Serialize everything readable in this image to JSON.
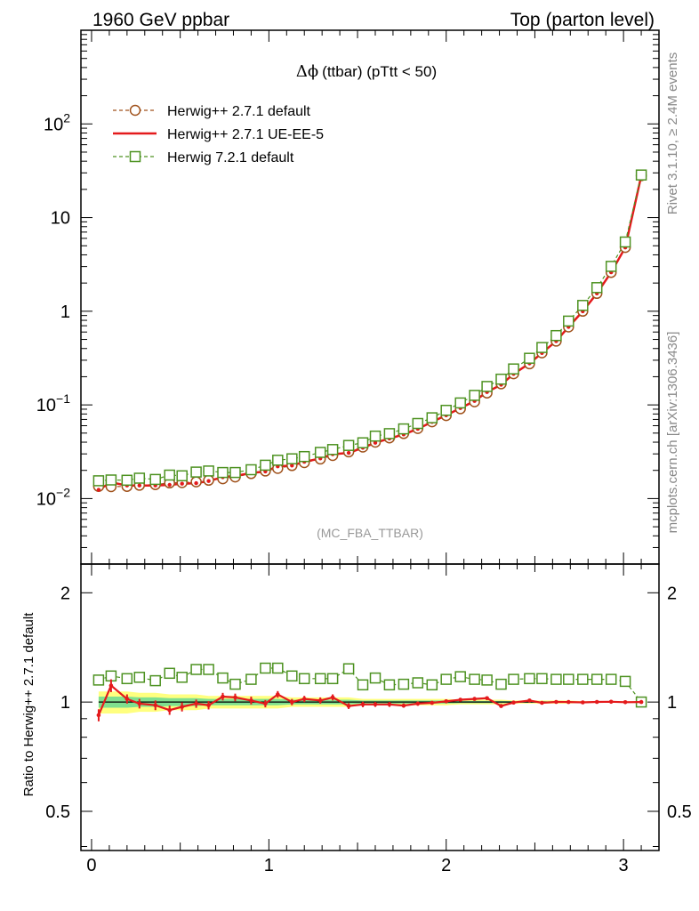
{
  "header": {
    "left": "1960 GeV ppbar",
    "right": "Top (parton level)"
  },
  "side_labels": {
    "rivet": "Rivet 3.1.10, ≥ 2.4M events",
    "mcplots": "mcplots.cern.ch [arXiv:1306.3436]"
  },
  "chart_data": [
    {
      "type": "line",
      "title_symbol": "Δϕ",
      "title": "(ttbar) (pTtt < 50)",
      "watermark": "(MC_FBA_TTBAR)",
      "yscale": "log",
      "ylim": [
        0.002,
        1000
      ],
      "xlim": [
        -0.06,
        3.2
      ],
      "y_ticks": [
        {
          "value": 0.01,
          "base": "10",
          "exp": "−2"
        },
        {
          "value": 0.1,
          "base": "10",
          "exp": "−1"
        },
        {
          "value": 1,
          "base": "1",
          "exp": ""
        },
        {
          "value": 10,
          "base": "10",
          "exp": ""
        },
        {
          "value": 100,
          "base": "10",
          "exp": "2"
        }
      ],
      "legend_position": "top-left",
      "x": [
        0.04,
        0.11,
        0.2,
        0.27,
        0.36,
        0.44,
        0.51,
        0.59,
        0.66,
        0.74,
        0.81,
        0.9,
        0.98,
        1.05,
        1.13,
        1.2,
        1.29,
        1.36,
        1.45,
        1.53,
        1.6,
        1.68,
        1.76,
        1.84,
        1.92,
        2.0,
        2.08,
        2.16,
        2.23,
        2.31,
        2.38,
        2.47,
        2.54,
        2.62,
        2.69,
        2.77,
        2.85,
        2.93,
        3.01,
        3.1
      ],
      "series": [
        {
          "name": "Herwig++ 2.7.1 default",
          "color": "#a0521c",
          "marker": "circle",
          "linestyle": "dashed",
          "values": [
            0.0135,
            0.0134,
            0.0135,
            0.0139,
            0.0141,
            0.0147,
            0.0148,
            0.0151,
            0.0157,
            0.0163,
            0.017,
            0.0185,
            0.0197,
            0.021,
            0.0225,
            0.0242,
            0.0265,
            0.0288,
            0.0315,
            0.0355,
            0.04,
            0.0445,
            0.0495,
            0.056,
            0.066,
            0.077,
            0.091,
            0.108,
            0.134,
            0.168,
            0.215,
            0.275,
            0.36,
            0.48,
            0.68,
            1.0,
            1.55,
            2.6,
            4.8,
            28.0
          ]
        },
        {
          "name": "Herwig++ 2.7.1 UE-EE-5",
          "color": "#e41a1c",
          "marker": "none",
          "linestyle": "solid",
          "values": [
            0.0124,
            0.0149,
            0.0138,
            0.0138,
            0.0138,
            0.014,
            0.0144,
            0.0146,
            0.0154,
            0.0169,
            0.0175,
            0.0187,
            0.0195,
            0.0221,
            0.0225,
            0.0247,
            0.0268,
            0.0297,
            0.0307,
            0.0349,
            0.0394,
            0.0438,
            0.0484,
            0.0554,
            0.0657,
            0.0774,
            0.0924,
            0.1101,
            0.1372,
            0.164,
            0.2143,
            0.2773,
            0.3583,
            0.4805,
            0.6797,
            0.998,
            1.5515,
            2.6039,
            4.7933,
            28.0
          ]
        },
        {
          "name": "Herwig 7.2.1 default",
          "color": "#4d9221",
          "marker": "open-square",
          "linestyle": "dashed",
          "values": [
            0.0155,
            0.0158,
            0.0157,
            0.0165,
            0.016,
            0.0178,
            0.0175,
            0.0192,
            0.0197,
            0.019,
            0.019,
            0.0203,
            0.0227,
            0.0257,
            0.0266,
            0.0281,
            0.0311,
            0.0334,
            0.0369,
            0.0394,
            0.0464,
            0.0494,
            0.0555,
            0.0633,
            0.0728,
            0.0875,
            0.1049,
            0.1265,
            0.1575,
            0.1882,
            0.2422,
            0.3149,
            0.4104,
            0.5497,
            0.7844,
            1.154,
            1.789,
            3.016,
            5.482,
            28.5
          ]
        }
      ]
    },
    {
      "type": "line",
      "ylabel": "Ratio to Herwig++ 2.7.1 default",
      "yscale": "log",
      "ylim": [
        0.39,
        2.4
      ],
      "xlim": [
        -0.06,
        3.2
      ],
      "x_ticks": [
        0,
        1,
        2,
        3
      ],
      "y_ticks": [
        0.5,
        1,
        2
      ],
      "x": [
        0.04,
        0.11,
        0.2,
        0.27,
        0.36,
        0.44,
        0.51,
        0.59,
        0.66,
        0.74,
        0.81,
        0.9,
        0.98,
        1.05,
        1.13,
        1.2,
        1.29,
        1.36,
        1.45,
        1.53,
        1.6,
        1.68,
        1.76,
        1.84,
        1.92,
        2.0,
        2.08,
        2.16,
        2.23,
        2.31,
        2.38,
        2.47,
        2.54,
        2.62,
        2.69,
        2.77,
        2.85,
        2.93,
        3.01,
        3.1
      ],
      "bands": [
        {
          "name": "yellow",
          "color": "#ffff7f",
          "low": [
            0.93,
            0.93,
            0.93,
            0.94,
            0.94,
            0.95,
            0.95,
            0.95,
            0.96,
            0.96,
            0.96,
            0.96,
            0.96,
            0.96,
            0.97,
            0.97,
            0.97,
            0.97,
            0.97,
            0.98,
            0.98,
            0.98,
            0.98,
            0.98,
            0.98,
            0.98,
            0.985,
            0.985,
            0.985,
            0.985,
            0.99,
            0.99,
            0.99,
            0.99,
            0.99,
            0.995,
            0.995,
            0.995,
            0.995,
            0.995
          ],
          "high": [
            1.07,
            1.07,
            1.07,
            1.06,
            1.06,
            1.05,
            1.05,
            1.05,
            1.04,
            1.04,
            1.04,
            1.04,
            1.04,
            1.04,
            1.03,
            1.03,
            1.03,
            1.03,
            1.03,
            1.02,
            1.02,
            1.02,
            1.02,
            1.02,
            1.02,
            1.02,
            1.015,
            1.015,
            1.015,
            1.015,
            1.01,
            1.01,
            1.01,
            1.01,
            1.01,
            1.005,
            1.005,
            1.005,
            1.005,
            1.005
          ]
        },
        {
          "name": "green",
          "color": "#7fe08f",
          "low": [
            0.965,
            0.965,
            0.965,
            0.97,
            0.97,
            0.975,
            0.975,
            0.975,
            0.98,
            0.98,
            0.98,
            0.98,
            0.98,
            0.98,
            0.985,
            0.985,
            0.985,
            0.985,
            0.985,
            0.99,
            0.99,
            0.99,
            0.99,
            0.99,
            0.99,
            0.99,
            0.993,
            0.993,
            0.993,
            0.993,
            0.995,
            0.995,
            0.995,
            0.995,
            0.995,
            0.997,
            0.997,
            0.997,
            0.997,
            0.997
          ],
          "high": [
            1.035,
            1.035,
            1.035,
            1.03,
            1.03,
            1.025,
            1.025,
            1.025,
            1.02,
            1.02,
            1.02,
            1.02,
            1.02,
            1.02,
            1.015,
            1.015,
            1.015,
            1.015,
            1.015,
            1.01,
            1.01,
            1.01,
            1.01,
            1.01,
            1.01,
            1.01,
            1.007,
            1.007,
            1.007,
            1.007,
            1.005,
            1.005,
            1.005,
            1.005,
            1.005,
            1.003,
            1.003,
            1.003,
            1.003,
            1.003
          ]
        }
      ],
      "series": [
        {
          "name": "Herwig++ 2.7.1 default",
          "color": "#000000",
          "linestyle": "solid",
          "values": [
            1,
            1,
            1,
            1,
            1,
            1,
            1,
            1,
            1,
            1,
            1,
            1,
            1,
            1,
            1,
            1,
            1,
            1,
            1,
            1,
            1,
            1,
            1,
            1,
            1,
            1,
            1,
            1,
            1,
            1,
            1,
            1,
            1,
            1,
            1,
            1,
            1,
            1,
            1,
            1
          ]
        },
        {
          "name": "Herwig++ 2.7.1 UE-EE-5",
          "color": "#e41a1c",
          "marker": "point",
          "linestyle": "solid",
          "values": [
            0.92,
            1.11,
            1.02,
            0.99,
            0.98,
            0.95,
            0.97,
            0.99,
            0.98,
            1.035,
            1.03,
            1.01,
            0.99,
            1.05,
            1.0,
            1.02,
            1.01,
            1.03,
            0.975,
            0.985,
            0.985,
            0.985,
            0.978,
            0.99,
            0.995,
            1.005,
            1.015,
            1.02,
            1.025,
            0.975,
            0.997,
            1.01,
            0.995,
            1.001,
            1.0,
            0.998,
            1.001,
            1.002,
            0.999,
            1.0
          ],
          "errors": [
            0.035,
            0.045,
            0.03,
            0.03,
            0.03,
            0.028,
            0.028,
            0.026,
            0.026,
            0.025,
            0.025,
            0.025,
            0.023,
            0.022,
            0.02,
            0.02,
            0.02,
            0.02,
            0.018,
            0.017,
            0.015,
            0.015,
            0.013,
            0.013,
            0.012,
            0.011,
            0.01,
            0.01,
            0.009,
            0.009,
            0.008,
            0.007,
            0.006,
            0.005,
            0.004,
            0.004,
            0.003,
            0.003,
            0.002,
            0.001
          ]
        },
        {
          "name": "Herwig 7.2.1 default",
          "color": "#4d9221",
          "marker": "open-square",
          "linestyle": "dashed",
          "values": [
            1.15,
            1.18,
            1.16,
            1.17,
            1.145,
            1.2,
            1.17,
            1.23,
            1.23,
            1.165,
            1.12,
            1.155,
            1.24,
            1.24,
            1.18,
            1.16,
            1.16,
            1.16,
            1.235,
            1.115,
            1.165,
            1.115,
            1.12,
            1.13,
            1.115,
            1.155,
            1.175,
            1.155,
            1.15,
            1.12,
            1.155,
            1.16,
            1.16,
            1.155,
            1.155,
            1.155,
            1.155,
            1.155,
            1.14,
            1.0
          ]
        }
      ]
    }
  ]
}
